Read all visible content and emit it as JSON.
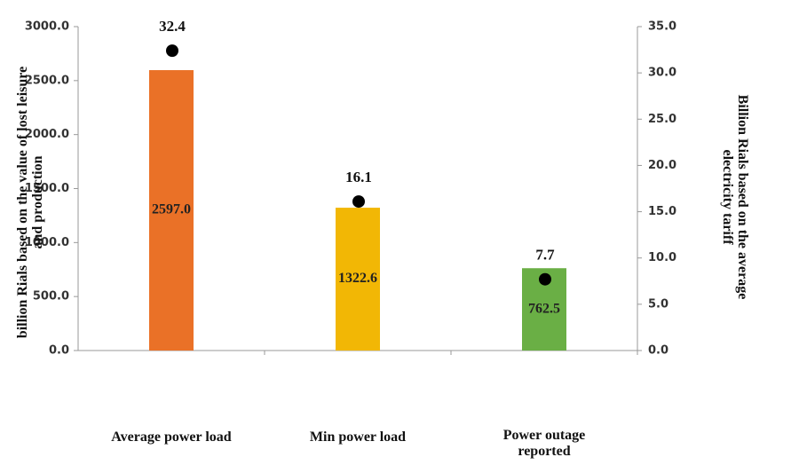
{
  "chart_data": {
    "type": "bar",
    "categories": [
      "Average power load",
      "Min power load",
      "Power outage reported"
    ],
    "series": [
      {
        "type": "bar",
        "color": "#ea7127",
        "values": [
          2597.0,
          1322.6,
          762.5
        ],
        "value_labels": [
          "2597.0",
          "1322.6",
          "762.5"
        ]
      },
      {
        "type": "scatter",
        "axis": "y2",
        "color": "#000000",
        "values": [
          32.4,
          16.1,
          7.7
        ]
      }
    ],
    "bar_colors": [
      "#ea7127",
      "#f2b705",
      "#6aaf45"
    ],
    "y_label": "billion Rials based on the value of lost leisure and production",
    "y2_label": "Billion Rials based on the average electricity tariff",
    "ylim": [
      0,
      3000
    ],
    "yticks": [
      {
        "value": 0,
        "label": "0.0"
      },
      {
        "value": 500,
        "label": "500.0"
      },
      {
        "value": 1000,
        "label": "1000.0"
      },
      {
        "value": 1500,
        "label": "1500.0"
      },
      {
        "value": 2000,
        "label": "2000.0"
      },
      {
        "value": 2500,
        "label": "2500.0"
      },
      {
        "value": 3000,
        "label": "3000.0"
      }
    ],
    "y2lim": [
      0,
      35
    ],
    "y2ticks": [
      {
        "value": 0,
        "label": "0.0"
      },
      {
        "value": 5,
        "label": "5.0"
      },
      {
        "value": 10,
        "label": "10.0"
      },
      {
        "value": 15,
        "label": "15.0"
      },
      {
        "value": 20,
        "label": "20.0"
      },
      {
        "value": 25,
        "label": "25.0"
      },
      {
        "value": 30,
        "label": "30.0"
      },
      {
        "value": 35,
        "label": "35.0"
      }
    ],
    "grid": false
  }
}
